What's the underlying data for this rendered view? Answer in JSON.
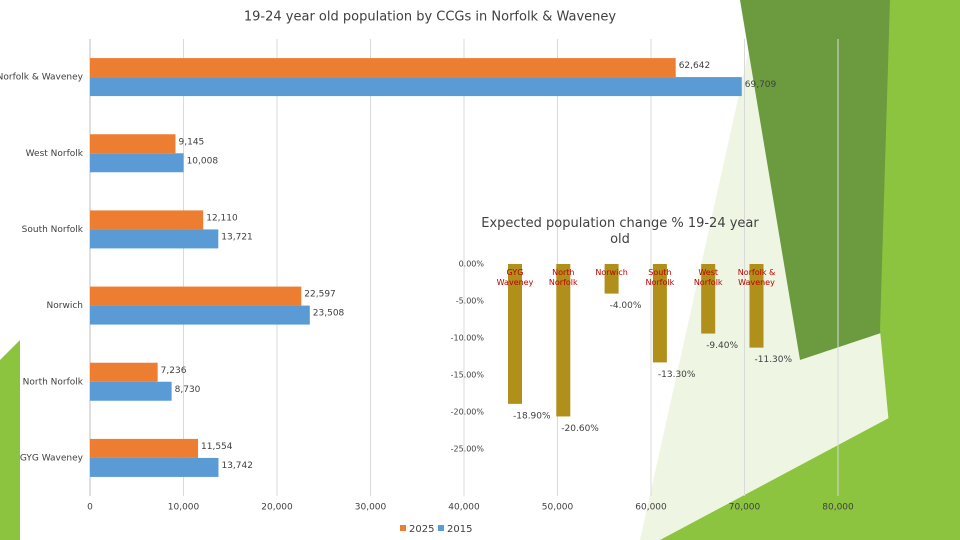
{
  "chart_data": [
    {
      "type": "hbar",
      "title": "19-24 year old population by CCGs in Norfolk & Waveney",
      "categories": [
        "Norfolk & Waveney",
        "West Norfolk",
        "South Norfolk",
        "Norwich",
        "North Norfolk",
        "GYG Waveney"
      ],
      "series": [
        {
          "name": "2025",
          "color": "#ed7d31",
          "values": [
            62642,
            9145,
            12110,
            22597,
            7236,
            11554
          ],
          "value_labels": [
            "62,642",
            "9,145",
            "12,110",
            "22,597",
            "7,236",
            "11,554"
          ]
        },
        {
          "name": "2015",
          "color": "#5b9bd5",
          "values": [
            69709,
            10008,
            13721,
            23508,
            8730,
            13742
          ],
          "value_labels": [
            "69,709",
            "10,008",
            "13,721",
            "23,508",
            "8,730",
            "13,742"
          ]
        }
      ],
      "xlim": [
        0,
        80000
      ],
      "xticks": [
        0,
        {
          "value": 10000,
          "label": "10,000"
        },
        {
          "value": 20000,
          "label": "20,000"
        },
        {
          "value": 30000,
          "label": "30,000"
        },
        {
          "value": 40000,
          "label": "40,000"
        },
        {
          "value": 50000,
          "label": "50,000"
        },
        {
          "value": 60000,
          "label": "60,000"
        },
        {
          "value": 70000,
          "label": "70,000"
        },
        {
          "value": 80000,
          "label": "80,000"
        }
      ],
      "grid": true,
      "legend": "bottom"
    },
    {
      "type": "bar",
      "title": "Expected population change % 19-24 year old",
      "categories": [
        "GYG Waveney",
        "North Norfolk",
        "Norwich",
        "South Norfolk",
        "West Norfolk",
        "Norfolk & Waveney"
      ],
      "values": [
        -18.9,
        -20.6,
        -4.0,
        -13.3,
        -9.4,
        -11.3
      ],
      "value_labels": [
        "-18.90%",
        "-20.60%",
        "-4.00%",
        "-13.30%",
        "-9.40%",
        "-11.30%"
      ],
      "color": "#b08f1a",
      "ylim": [
        -25,
        0
      ],
      "yticks": [
        {
          "value": 0,
          "label": "0.00%"
        },
        {
          "value": -5,
          "label": "-5.00%"
        },
        {
          "value": -10,
          "label": "-10.00%"
        },
        {
          "value": -15,
          "label": "-15.00%"
        },
        {
          "value": -20,
          "label": "-20.00%"
        },
        {
          "value": -25,
          "label": "-25.00%"
        }
      ]
    }
  ]
}
